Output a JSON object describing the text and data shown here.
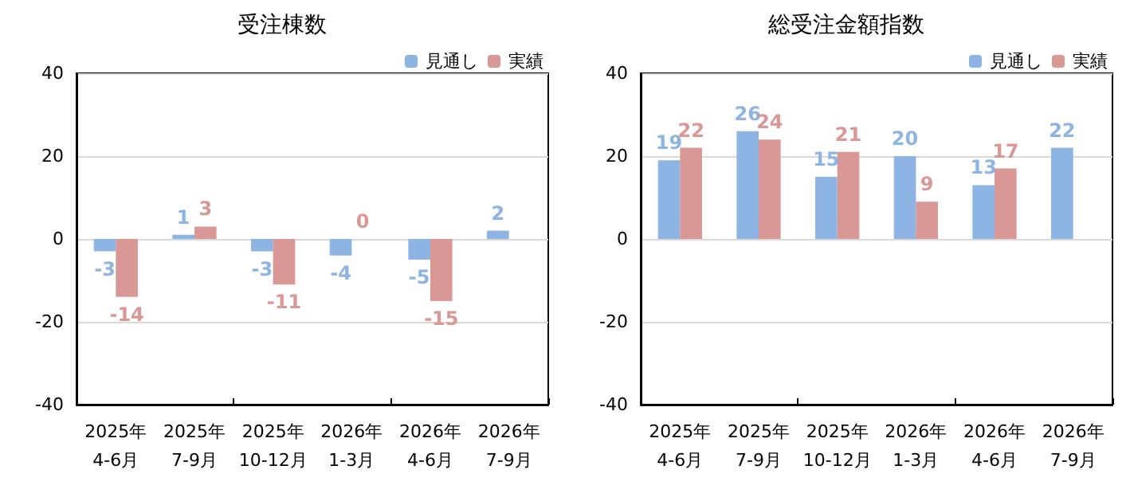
{
  "chart_data": [
    {
      "type": "bar",
      "title": "受注棟数",
      "categories": [
        "2025年\n4-6月",
        "2025年\n7-9月",
        "2025年\n10-12月",
        "2026年\n1-3月",
        "2026年\n4-6月",
        "2026年\n7-9月"
      ],
      "series": [
        {
          "name": "見通し",
          "color": "#8db4e2",
          "values": [
            -3,
            1,
            -3,
            -4,
            -5,
            2
          ]
        },
        {
          "name": "実績",
          "color": "#d99795",
          "values": [
            -14,
            3,
            -11,
            0,
            -15,
            null
          ]
        }
      ],
      "ylim": [
        -40,
        40
      ],
      "yticks": [
        -40,
        -20,
        0,
        20,
        40
      ],
      "grid": "y",
      "legend": "top right",
      "data_labels": true
    },
    {
      "type": "bar",
      "title": "総受注金額指数",
      "categories": [
        "2025年\n4-6月",
        "2025年\n7-9月",
        "2025年\n10-12月",
        "2026年\n1-3月",
        "2026年\n4-6月",
        "2026年\n7-9月"
      ],
      "series": [
        {
          "name": "見通し",
          "color": "#8db4e2",
          "values": [
            19,
            26,
            15,
            20,
            13,
            22
          ]
        },
        {
          "name": "実績",
          "color": "#d99795",
          "values": [
            22,
            24,
            21,
            9,
            17,
            null
          ]
        }
      ],
      "ylim": [
        -40,
        40
      ],
      "yticks": [
        -40,
        -20,
        0,
        20,
        40
      ],
      "grid": "y",
      "legend": "top right",
      "data_labels": true
    }
  ]
}
